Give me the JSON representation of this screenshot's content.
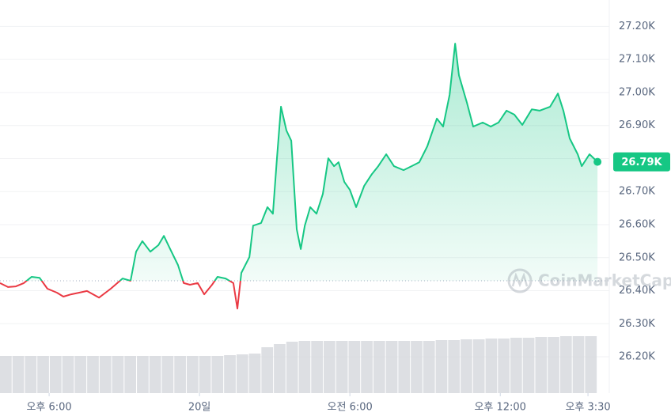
{
  "chart_data": {
    "type": "line",
    "watermark": "CoinMarketCap",
    "x": [
      16.04,
      16.36,
      16.67,
      16.99,
      17.3,
      17.62,
      17.93,
      18.31,
      18.57,
      18.88,
      19.2,
      19.51,
      19.99,
      20.46,
      20.93,
      21.25,
      21.47,
      21.72,
      22.04,
      22.36,
      22.58,
      22.83,
      23.14,
      23.37,
      23.62,
      23.93,
      24.19,
      24.5,
      24.72,
      25.04,
      25.35,
      25.51,
      25.67,
      25.99,
      26.14,
      26.46,
      26.71,
      26.93,
      27.09,
      27.25,
      27.47,
      27.66,
      27.88,
      28.04,
      28.2,
      28.42,
      28.67,
      28.92,
      29.14,
      29.37,
      29.55,
      29.78,
      30.0,
      30.25,
      30.57,
      30.88,
      31.13,
      31.45,
      31.76,
      32.14,
      32.46,
      32.77,
      33.09,
      33.47,
      33.72,
      33.98,
      34.2,
      34.35,
      34.67,
      34.92,
      35.3,
      35.62,
      35.93,
      36.25,
      36.56,
      36.88,
      37.26,
      37.57,
      37.99,
      38.3,
      38.52,
      38.77,
      39.09,
      39.25,
      39.56,
      39.88
    ],
    "series": [
      {
        "name": "price",
        "color": "#16c784",
        "color_below": "#ea3943",
        "values": [
          26.423,
          26.411,
          26.413,
          26.423,
          26.442,
          26.439,
          26.406,
          26.394,
          26.382,
          26.389,
          26.394,
          26.399,
          26.379,
          26.406,
          26.437,
          26.43,
          26.518,
          26.55,
          26.518,
          26.538,
          26.566,
          26.526,
          26.478,
          26.423,
          26.418,
          26.423,
          26.389,
          26.418,
          26.442,
          26.437,
          26.423,
          26.346,
          26.454,
          26.502,
          26.597,
          26.605,
          26.653,
          26.633,
          26.801,
          26.957,
          26.885,
          26.854,
          26.586,
          26.526,
          26.597,
          26.653,
          26.633,
          26.693,
          26.801,
          26.777,
          26.789,
          26.729,
          26.705,
          26.653,
          26.717,
          26.753,
          26.777,
          26.813,
          26.777,
          26.765,
          26.777,
          26.789,
          26.837,
          26.921,
          26.897,
          26.993,
          27.148,
          27.052,
          26.969,
          26.897,
          26.909,
          26.897,
          26.909,
          26.945,
          26.933,
          26.902,
          26.949,
          26.945,
          26.957,
          26.997,
          26.945,
          26.861,
          26.813,
          26.777,
          26.813,
          26.79
        ],
        "value_labels": [
          null,
          null,
          null,
          null,
          null,
          null,
          null,
          null,
          null,
          null,
          null,
          null,
          null,
          null,
          null,
          null,
          null,
          null,
          null,
          null,
          null,
          null,
          null,
          null,
          null,
          null,
          null,
          null,
          null,
          null,
          null,
          null,
          null,
          null,
          null,
          null,
          null,
          null,
          null,
          null,
          null,
          null,
          null,
          null,
          null,
          null,
          null,
          null,
          null,
          null,
          null,
          null,
          null,
          null,
          null,
          null,
          null,
          null,
          null,
          null,
          null,
          null,
          null,
          null,
          null,
          null,
          null,
          null,
          null,
          null,
          null,
          null,
          null,
          null,
          null,
          null,
          null,
          null,
          null,
          null,
          null,
          null,
          null,
          null,
          null,
          "26.79K"
        ]
      }
    ],
    "baseline": 26.43,
    "volume": {
      "color": "#d5d7dc",
      "values": [
        47,
        47,
        47,
        47,
        47,
        47,
        47,
        47,
        47,
        47,
        47,
        47,
        47,
        47,
        47,
        47,
        47,
        47,
        48,
        49,
        50,
        58,
        62,
        65,
        66,
        66,
        66,
        66,
        66,
        66,
        66,
        66,
        66,
        66,
        66,
        67,
        67,
        68,
        68,
        69,
        69,
        70,
        70,
        71,
        71,
        72,
        72,
        72
      ],
      "vlim": [
        0,
        100
      ]
    },
    "xlim": [
      16.04,
      40.35
    ],
    "xticks": [
      {
        "value": 18,
        "label": "오후 6:00"
      },
      {
        "value": 24,
        "label": "20일"
      },
      {
        "value": 30,
        "label": "오전 6:00"
      },
      {
        "value": 36,
        "label": "오후 12:00"
      },
      {
        "value": 39.5,
        "label": "오후 3:30"
      }
    ],
    "ylim": [
      26.09,
      27.28
    ],
    "yticks": [
      {
        "value": 26.2,
        "label": "26.20K"
      },
      {
        "value": 26.3,
        "label": "26.30K"
      },
      {
        "value": 26.4,
        "label": "26.40K"
      },
      {
        "value": 26.5,
        "label": "26.50K"
      },
      {
        "value": 26.6,
        "label": "26.60K"
      },
      {
        "value": 26.7,
        "label": "26.70K"
      },
      {
        "value": 26.8,
        "label": "26.80K"
      },
      {
        "value": 26.9,
        "label": "26.90K"
      },
      {
        "value": 27.0,
        "label": "27.00K"
      },
      {
        "value": 27.1,
        "label": "27.10K"
      },
      {
        "value": 27.2,
        "label": "27.20K"
      }
    ],
    "grid": true
  }
}
